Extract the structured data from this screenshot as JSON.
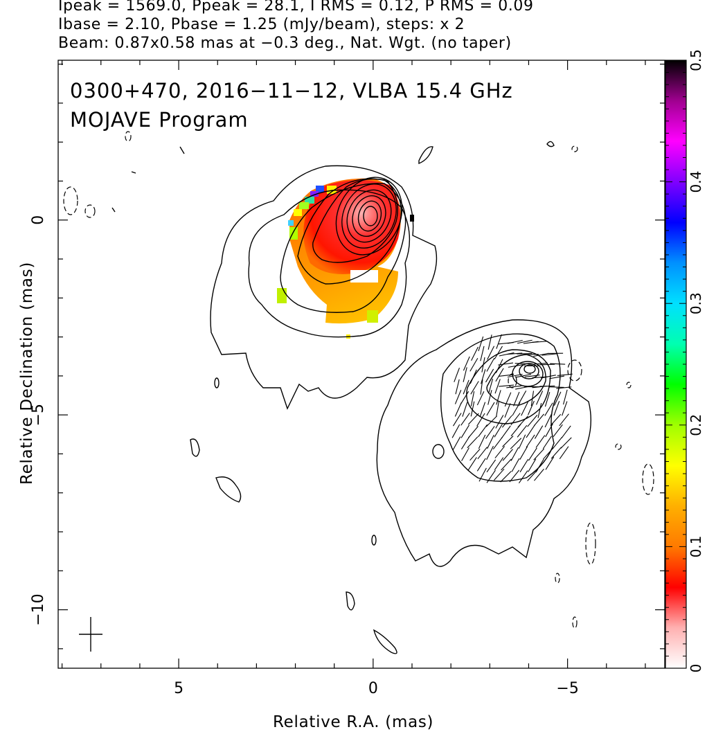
{
  "header": {
    "line1": "Ipeak = 1569.0, Ppeak = 28.1, I RMS = 0.12, P RMS = 0.09",
    "line2": "Ibase = 2.10, Pbase = 1.25 (mJy/beam), steps: x 2",
    "line3": "Beam: 0.87x0.58 mas at −0.3 deg., Nat. Wgt. (no taper)"
  },
  "chart_data": {
    "type": "heatmap",
    "title": "0300+470, 2016−11−12, VLBA 15.4 GHz",
    "subtitle": "MOJAVE Program",
    "xlabel": "Relative R.A. (mas)",
    "ylabel": "Relative Declination (mas)",
    "x_reversed": true,
    "xlim": [
      8.1,
      -7.5
    ],
    "ylim": [
      -11.5,
      4.1
    ],
    "x_ticks": [
      {
        "v": 5,
        "label": "5"
      },
      {
        "v": 0,
        "label": "0"
      },
      {
        "v": -5,
        "label": "−5"
      }
    ],
    "y_ticks": [
      {
        "v": 0,
        "label": "0"
      },
      {
        "v": -5,
        "label": "−5"
      },
      {
        "v": -10,
        "label": "−10"
      }
    ],
    "colorbar": {
      "min": 0,
      "max": 0.5,
      "ticks": [
        {
          "v": 0,
          "label": "0"
        },
        {
          "v": 0.1,
          "label": "0.1"
        },
        {
          "v": 0.2,
          "label": "0.2"
        },
        {
          "v": 0.3,
          "label": "0.3"
        },
        {
          "v": 0.4,
          "label": "0.4"
        },
        {
          "v": 0.5,
          "label": "0.5"
        }
      ],
      "stops": [
        "#ffffff",
        "#ffb0b0",
        "#ff0000",
        "#ff7a00",
        "#ffb000",
        "#ffff00",
        "#a0ff00",
        "#00ff00",
        "#00ffb0",
        "#00e0ff",
        "#0090ff",
        "#0000ff",
        "#8000ff",
        "#ff00ff",
        "#a00090",
        "#000000"
      ]
    },
    "core": {
      "ra": 0.0,
      "dec": 0.0
    },
    "jet_knot": {
      "ra": -4.0,
      "dec": -4.0
    },
    "beam": {
      "major_mas": 0.87,
      "minor_mas": 0.58,
      "pa_deg": -0.3
    }
  }
}
